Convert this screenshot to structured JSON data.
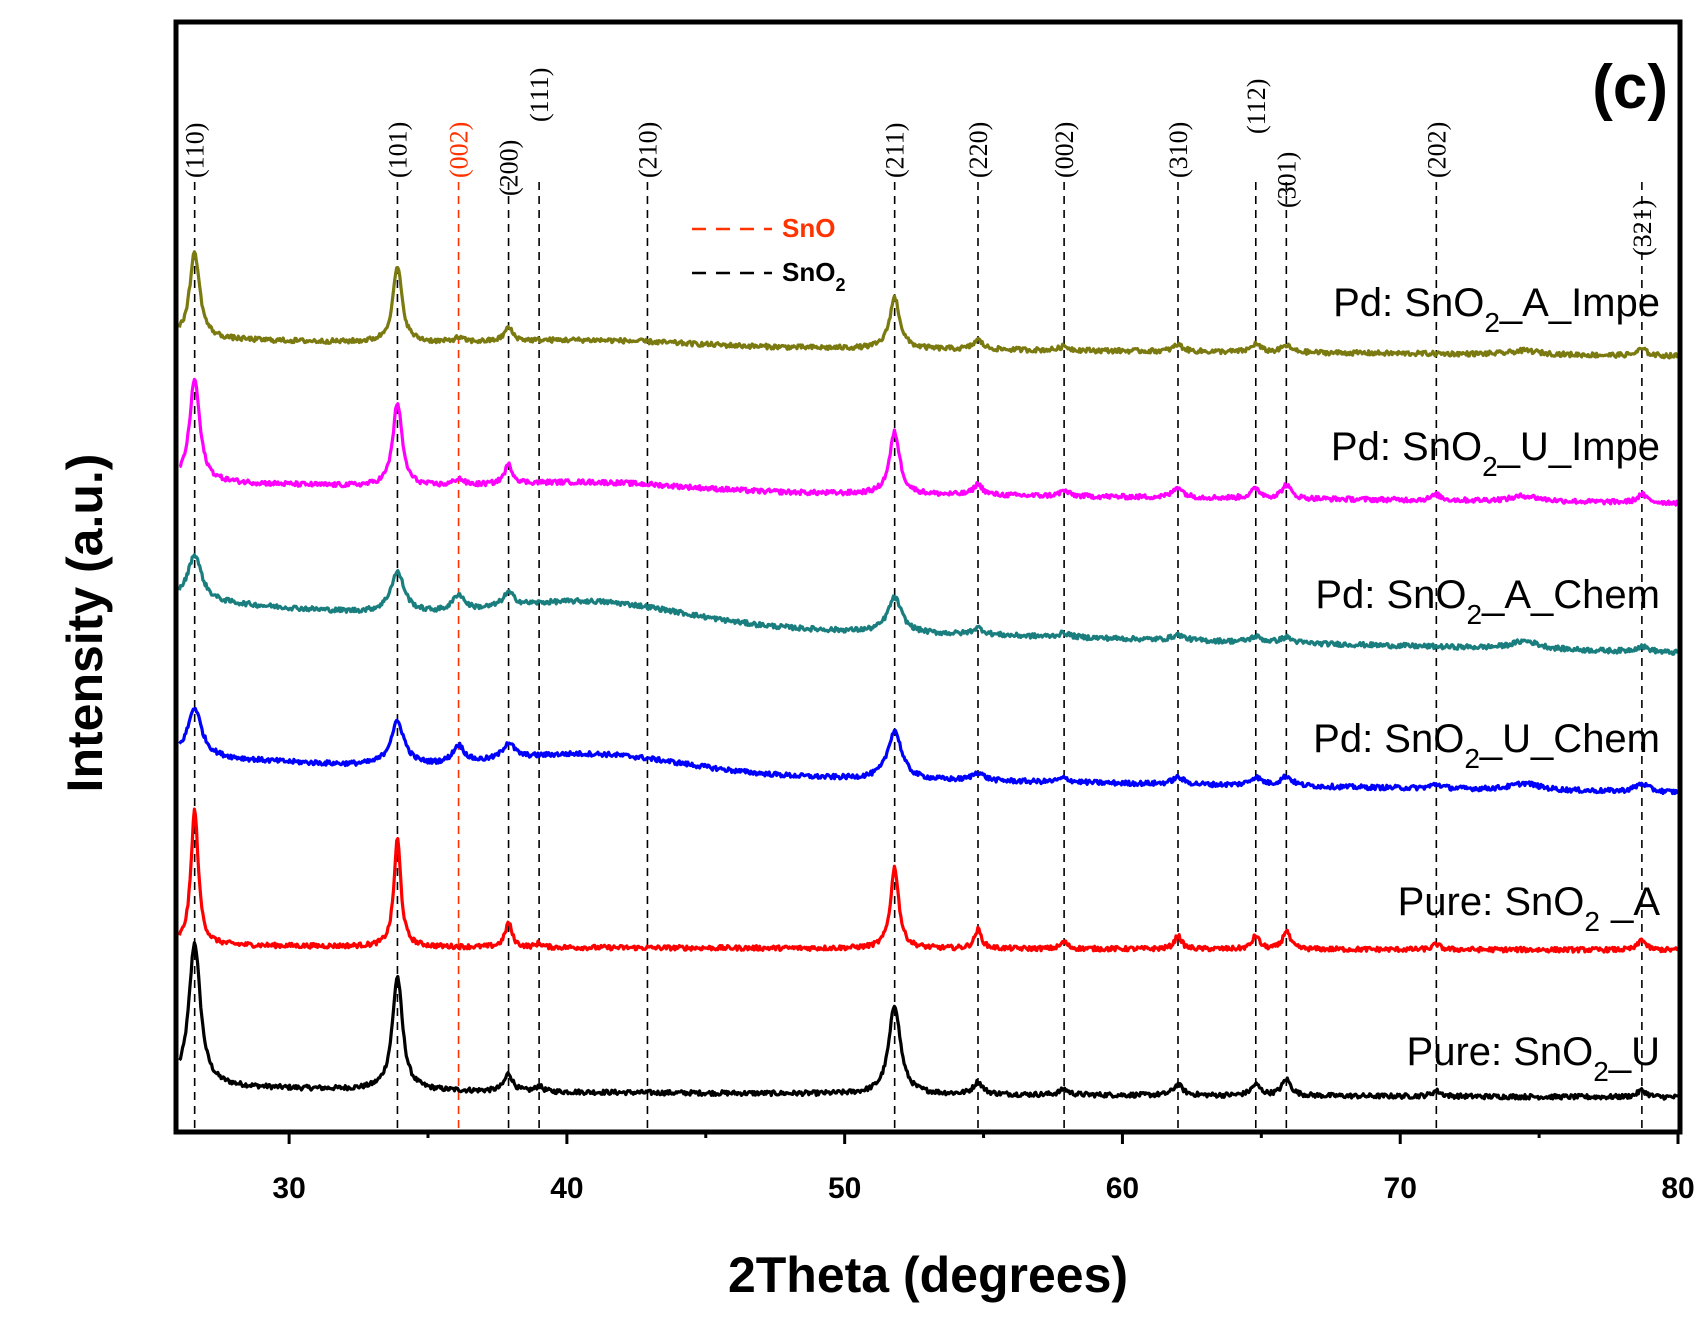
{
  "chart_data": {
    "type": "line",
    "panel_tag": "(c)",
    "xlabel": "2Theta (degrees)",
    "ylabel": "Intensity (a.u.)",
    "xlim": [
      26,
      80
    ],
    "xticks": [
      30,
      40,
      50,
      60,
      70,
      80
    ],
    "grid": false,
    "legend": {
      "position": "top-center",
      "entries": [
        {
          "label": "SnO",
          "style": "dashed",
          "color": "#ff3300"
        },
        {
          "label": "SnO",
          "sub": "2",
          "style": "dashed",
          "color": "#000000"
        }
      ]
    },
    "reference_lines": [
      {
        "label": "(110)",
        "x": 26.6,
        "phase": "SnO2"
      },
      {
        "label": "(101)",
        "x": 33.9,
        "phase": "SnO2"
      },
      {
        "label": "(002)",
        "x": 36.1,
        "phase": "SnO"
      },
      {
        "label": "(200)",
        "x": 37.9,
        "phase": "SnO2"
      },
      {
        "label": "(111)",
        "x": 39.0,
        "phase": "SnO2"
      },
      {
        "label": "(210)",
        "x": 42.9,
        "phase": "SnO2"
      },
      {
        "label": "(211)",
        "x": 51.8,
        "phase": "SnO2"
      },
      {
        "label": "(220)",
        "x": 54.8,
        "phase": "SnO2"
      },
      {
        "label": "(002)",
        "x": 57.9,
        "phase": "SnO2"
      },
      {
        "label": "(310)",
        "x": 62.0,
        "phase": "SnO2"
      },
      {
        "label": "(112)",
        "x": 64.8,
        "phase": "SnO2"
      },
      {
        "label": "(301)",
        "x": 65.9,
        "phase": "SnO2"
      },
      {
        "label": "(202)",
        "x": 71.3,
        "phase": "SnO2"
      },
      {
        "label": "(321)",
        "x": 78.7,
        "phase": "SnO2"
      }
    ],
    "series": [
      {
        "name": "Pure: SnO2_U",
        "label_pre": "Pure: SnO",
        "label_sub": "2",
        "label_post": "_U",
        "color": "#000000",
        "baseline": 0.6,
        "end_baseline": 0.2,
        "slope_decay": 0.8,
        "broad_hump": 0,
        "peaks": [
          [
            26.6,
            10.6,
            0.25
          ],
          [
            33.9,
            8.4,
            0.22
          ],
          [
            37.9,
            1.3,
            0.18
          ],
          [
            39.0,
            0.4,
            0.15
          ],
          [
            51.8,
            6.6,
            0.25
          ],
          [
            54.8,
            0.9,
            0.2
          ],
          [
            57.9,
            0.4,
            0.2
          ],
          [
            62.0,
            0.8,
            0.2
          ],
          [
            64.8,
            0.8,
            0.2
          ],
          [
            65.9,
            1.2,
            0.2
          ],
          [
            71.3,
            0.4,
            0.2
          ],
          [
            78.7,
            0.5,
            0.2
          ]
        ]
      },
      {
        "name": "Pure: SnO2 _A",
        "label_pre": "Pure: SnO",
        "label_sub": "2",
        "label_post": " _A",
        "color": "#ff0000",
        "baseline": 0.2,
        "end_baseline": 0.0,
        "slope_decay": 0.3,
        "broad_hump": 0,
        "peaks": [
          [
            26.6,
            10.0,
            0.16
          ],
          [
            33.9,
            8.0,
            0.15
          ],
          [
            37.9,
            1.8,
            0.15
          ],
          [
            39.0,
            0.3,
            0.12
          ],
          [
            51.8,
            6.0,
            0.18
          ],
          [
            54.8,
            1.4,
            0.15
          ],
          [
            57.9,
            0.5,
            0.15
          ],
          [
            62.0,
            1.0,
            0.15
          ],
          [
            64.8,
            1.0,
            0.15
          ],
          [
            65.9,
            1.4,
            0.15
          ],
          [
            71.3,
            0.4,
            0.15
          ],
          [
            78.7,
            0.8,
            0.15
          ]
        ]
      },
      {
        "name": "Pd: SnO2_U_Chem",
        "label_pre": "Pd: SnO",
        "label_sub": "2",
        "label_post": "_U_Chem",
        "color": "#0000ff",
        "baseline": 2.2,
        "end_baseline": 0.4,
        "slope_decay": 1.6,
        "broad_hump": 1.4,
        "peaks": [
          [
            26.6,
            3.6,
            0.3
          ],
          [
            33.9,
            3.2,
            0.3
          ],
          [
            36.1,
            1.3,
            0.25
          ],
          [
            37.9,
            1.2,
            0.25
          ],
          [
            51.8,
            3.6,
            0.3
          ],
          [
            54.8,
            0.6,
            0.25
          ],
          [
            57.9,
            0.3,
            0.25
          ],
          [
            62.0,
            0.5,
            0.25
          ],
          [
            64.8,
            0.6,
            0.25
          ],
          [
            65.9,
            0.7,
            0.25
          ],
          [
            71.3,
            0.3,
            0.25
          ],
          [
            74.5,
            0.5,
            0.6
          ],
          [
            78.7,
            0.6,
            0.3
          ]
        ]
      },
      {
        "name": "Pd: SnO2_A_Chem",
        "label_pre": "Pd: SnO",
        "label_sub": "2",
        "label_post": "_A_Chem",
        "color": "#1a7e7e",
        "baseline": 2.8,
        "end_baseline": 0.0,
        "slope_decay": 2.0,
        "broad_hump": 1.6,
        "peaks": [
          [
            26.6,
            3.4,
            0.3
          ],
          [
            33.9,
            3.0,
            0.3
          ],
          [
            36.1,
            1.2,
            0.25
          ],
          [
            37.9,
            1.0,
            0.25
          ],
          [
            51.8,
            2.6,
            0.3
          ],
          [
            54.8,
            0.5,
            0.25
          ],
          [
            57.9,
            0.3,
            0.25
          ],
          [
            62.0,
            0.4,
            0.25
          ],
          [
            64.8,
            0.4,
            0.25
          ],
          [
            65.9,
            0.4,
            0.25
          ],
          [
            74.5,
            0.6,
            0.6
          ],
          [
            78.7,
            0.4,
            0.3
          ]
        ]
      },
      {
        "name": "Pd: SnO2_U_Impe",
        "label_pre": "Pd: SnO",
        "label_sub": "2",
        "label_post": "_U_Impe",
        "color": "#ff00ff",
        "baseline": 1.2,
        "end_baseline": 0.0,
        "slope_decay": 0.7,
        "broad_hump": 0.6,
        "peaks": [
          [
            26.6,
            7.6,
            0.22
          ],
          [
            33.9,
            6.2,
            0.2
          ],
          [
            36.1,
            0.5,
            0.2
          ],
          [
            37.9,
            1.4,
            0.18
          ],
          [
            51.8,
            4.6,
            0.22
          ],
          [
            54.8,
            0.8,
            0.2
          ],
          [
            57.9,
            0.4,
            0.2
          ],
          [
            62.0,
            0.8,
            0.2
          ],
          [
            64.8,
            0.7,
            0.2
          ],
          [
            65.9,
            1.0,
            0.2
          ],
          [
            71.3,
            0.4,
            0.2
          ],
          [
            74.5,
            0.4,
            0.6
          ],
          [
            78.7,
            0.6,
            0.2
          ]
        ]
      },
      {
        "name": "Pd: SnO2_A_Impe",
        "label_pre": "Pd: SnO",
        "label_sub": "2",
        "label_post": "_A_Impe",
        "color": "#7a7a10",
        "baseline": 1.0,
        "end_baseline": 0.0,
        "slope_decay": 0.5,
        "broad_hump": 0.4,
        "peaks": [
          [
            26.6,
            6.4,
            0.22
          ],
          [
            33.9,
            5.6,
            0.2
          ],
          [
            36.1,
            0.3,
            0.2
          ],
          [
            37.9,
            1.0,
            0.18
          ],
          [
            51.8,
            3.8,
            0.22
          ],
          [
            54.8,
            0.7,
            0.2
          ],
          [
            57.9,
            0.3,
            0.2
          ],
          [
            62.0,
            0.5,
            0.2
          ],
          [
            64.8,
            0.6,
            0.2
          ],
          [
            65.9,
            0.5,
            0.2
          ],
          [
            74.5,
            0.3,
            0.6
          ],
          [
            78.7,
            0.5,
            0.2
          ]
        ]
      }
    ]
  }
}
